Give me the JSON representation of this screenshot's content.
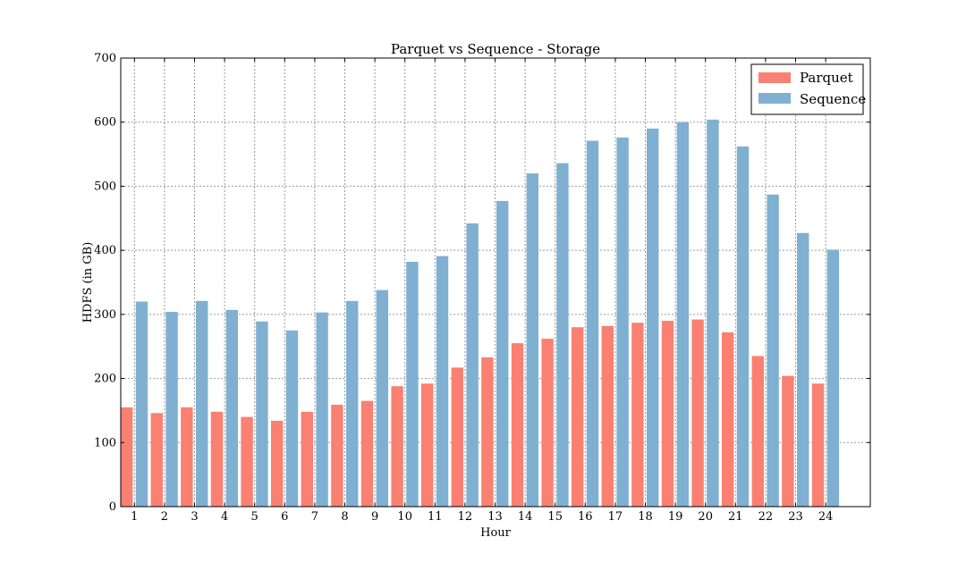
{
  "chart_data": {
    "type": "bar",
    "title": "Parquet vs Sequence - Storage",
    "xlabel": "Hour",
    "ylabel": "HDFS (in GB)",
    "categories": [
      "1",
      "2",
      "3",
      "4",
      "5",
      "6",
      "7",
      "8",
      "9",
      "10",
      "11",
      "12",
      "13",
      "14",
      "15",
      "16",
      "17",
      "18",
      "19",
      "20",
      "21",
      "22",
      "23",
      "24"
    ],
    "series": [
      {
        "name": "Parquet",
        "color": "#fa8072",
        "values": [
          155,
          146,
          155,
          148,
          140,
          134,
          148,
          159,
          165,
          188,
          192,
          217,
          233,
          255,
          262,
          280,
          282,
          287,
          290,
          292,
          272,
          235,
          204,
          192
        ]
      },
      {
        "name": "Sequence",
        "color": "#7fb0d1",
        "values": [
          320,
          304,
          321,
          307,
          289,
          275,
          303,
          321,
          338,
          382,
          391,
          442,
          477,
          520,
          536,
          571,
          576,
          590,
          600,
          604,
          562,
          487,
          427,
          401
        ]
      }
    ],
    "ylim": [
      0,
      700
    ],
    "yticks": [
      0,
      100,
      200,
      300,
      400,
      500,
      600,
      700
    ],
    "grid": true,
    "legend_position": "top-right"
  }
}
